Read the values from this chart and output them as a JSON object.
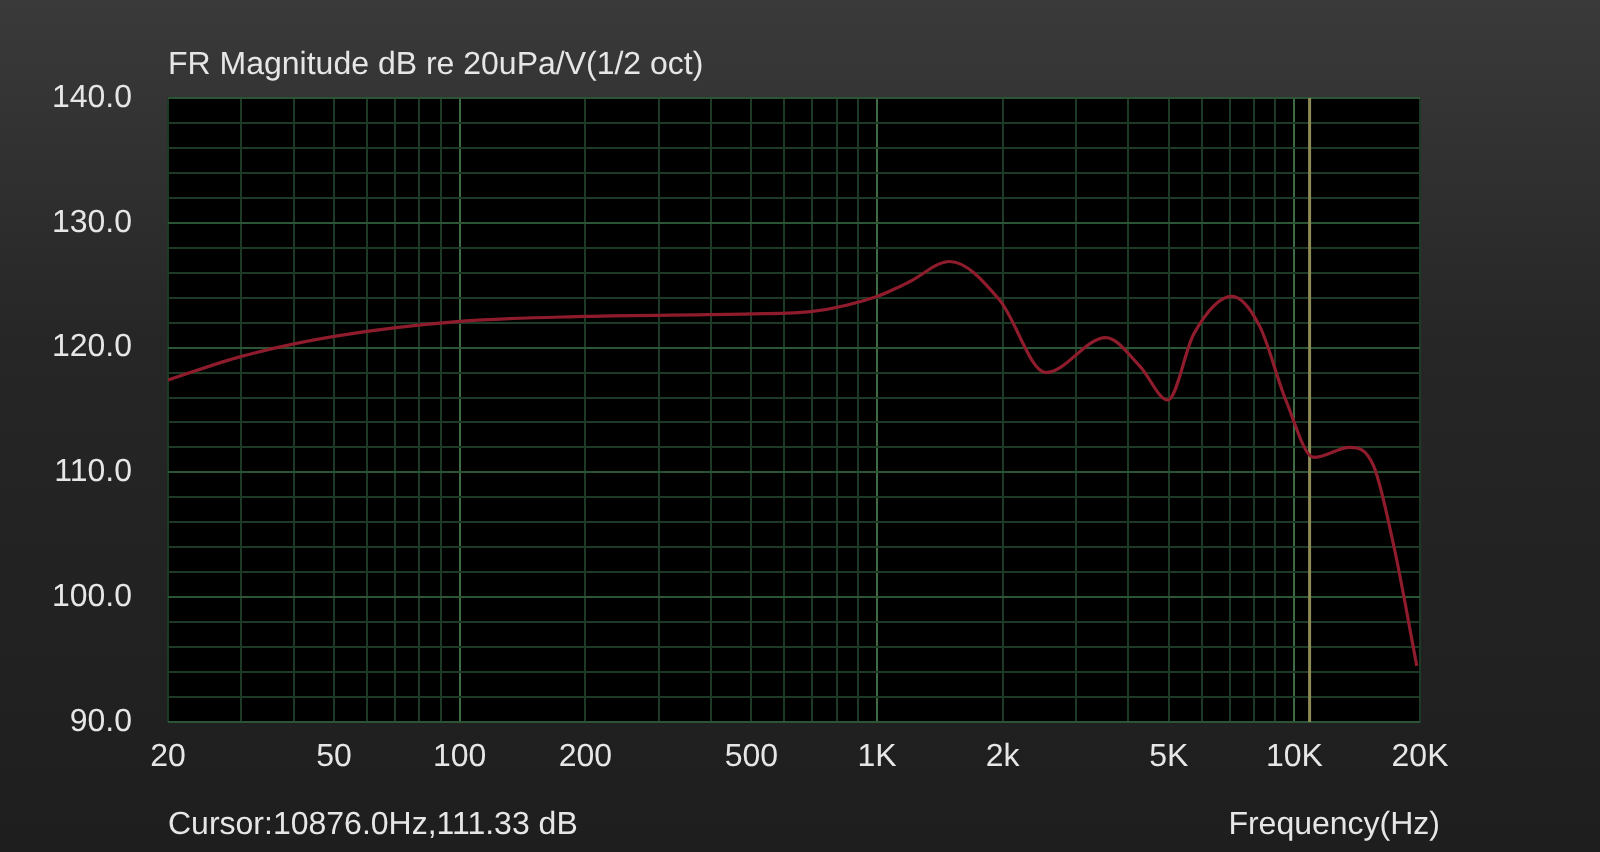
{
  "chart_data": {
    "type": "line",
    "title": "FR Magnitude dB re 20uPa/V(1/2 oct)",
    "xlabel": "Frequency(Hz)",
    "annotations": [
      "Cursor:10876.0Hz,111.33 dB"
    ],
    "log": "x",
    "grid": true,
    "xlim": [
      20,
      20000
    ],
    "ylim": [
      90,
      140
    ],
    "xticks": [
      {
        "value": 20,
        "label": "20"
      },
      {
        "value": 30,
        "label": null
      },
      {
        "value": 40,
        "label": null
      },
      {
        "value": 50,
        "label": "50"
      },
      {
        "value": 60,
        "label": null
      },
      {
        "value": 70,
        "label": null
      },
      {
        "value": 80,
        "label": null
      },
      {
        "value": 90,
        "label": null
      },
      {
        "value": 100,
        "label": "100"
      },
      {
        "value": 200,
        "label": "200"
      },
      {
        "value": 300,
        "label": null
      },
      {
        "value": 400,
        "label": null
      },
      {
        "value": 500,
        "label": "500"
      },
      {
        "value": 600,
        "label": null
      },
      {
        "value": 700,
        "label": null
      },
      {
        "value": 800,
        "label": null
      },
      {
        "value": 900,
        "label": null
      },
      {
        "value": 1000,
        "label": "1K"
      },
      {
        "value": 2000,
        "label": "2k"
      },
      {
        "value": 3000,
        "label": null
      },
      {
        "value": 4000,
        "label": null
      },
      {
        "value": 5000,
        "label": "5K"
      },
      {
        "value": 6000,
        "label": null
      },
      {
        "value": 7000,
        "label": null
      },
      {
        "value": 8000,
        "label": null
      },
      {
        "value": 9000,
        "label": null
      },
      {
        "value": 10000,
        "label": "10K"
      },
      {
        "value": 20000,
        "label": "20K"
      }
    ],
    "yticks": [
      {
        "value": 90,
        "label": "90.0"
      },
      {
        "value": 92,
        "label": null
      },
      {
        "value": 94,
        "label": null
      },
      {
        "value": 96,
        "label": null
      },
      {
        "value": 98,
        "label": null
      },
      {
        "value": 100,
        "label": "100.0"
      },
      {
        "value": 102,
        "label": null
      },
      {
        "value": 104,
        "label": null
      },
      {
        "value": 106,
        "label": null
      },
      {
        "value": 108,
        "label": null
      },
      {
        "value": 110,
        "label": "110.0"
      },
      {
        "value": 112,
        "label": null
      },
      {
        "value": 114,
        "label": null
      },
      {
        "value": 116,
        "label": null
      },
      {
        "value": 118,
        "label": null
      },
      {
        "value": 120,
        "label": "120.0"
      },
      {
        "value": 122,
        "label": null
      },
      {
        "value": 124,
        "label": null
      },
      {
        "value": 126,
        "label": null
      },
      {
        "value": 128,
        "label": null
      },
      {
        "value": 130,
        "label": "130.0"
      },
      {
        "value": 132,
        "label": null
      },
      {
        "value": 134,
        "label": null
      },
      {
        "value": 136,
        "label": null
      },
      {
        "value": 138,
        "label": null
      },
      {
        "value": 140,
        "label": "140.0"
      }
    ],
    "ref_lines": [
      {
        "axis": "x",
        "value": 10876,
        "color": "#8c8a55"
      }
    ],
    "series": [
      {
        "color": "#8e1c2c",
        "x": [
          20,
          30,
          50,
          100,
          200,
          500,
          700,
          1000,
          1135,
          1200,
          1493,
          1968,
          2538,
          3532,
          4266,
          4977,
          5742,
          7082,
          8262,
          9538,
          11130,
          13580,
          15490,
          17310,
          19650
        ],
        "values": [
          117.4,
          119.3,
          120.9,
          122.1,
          122.5,
          122.7,
          122.9,
          124.1,
          124.9,
          125.3,
          126.9,
          123.8,
          118.0,
          120.8,
          118.5,
          115.8,
          121.1,
          124.1,
          121.7,
          115.8,
          111.2,
          112.0,
          110.5,
          104.1,
          94.5
        ]
      }
    ]
  }
}
